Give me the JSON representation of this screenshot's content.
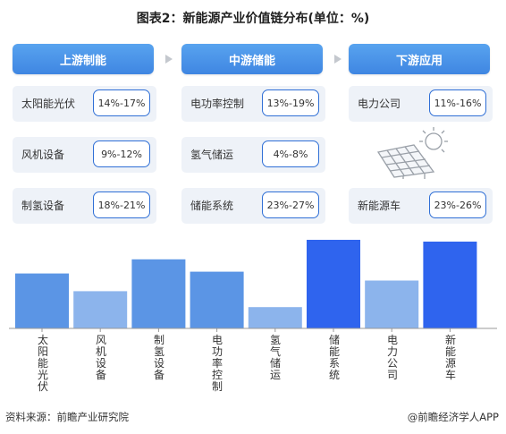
{
  "title": "图表2：新能源产业价值链分布(单位：%)",
  "stages": [
    {
      "header": "上游制能",
      "rows": [
        {
          "label": "太阳能光伏",
          "range": "14%-17%"
        },
        {
          "label": "风机设备",
          "range": "9%-12%"
        },
        {
          "label": "制氢设备",
          "range": "18%-21%"
        }
      ]
    },
    {
      "header": "中游储能",
      "rows": [
        {
          "label": "电功率控制",
          "range": "13%-19%"
        },
        {
          "label": "氢气储运",
          "range": "4%-8%"
        },
        {
          "label": "储能系统",
          "range": "23%-27%"
        }
      ]
    },
    {
      "header": "下游应用",
      "rows": [
        {
          "label": "电力公司",
          "range": "11%-16%"
        },
        {
          "label": "新能源车",
          "range": "23%-26%"
        }
      ]
    }
  ],
  "arrow_icon": "chevron-right-icon",
  "colors": {
    "header": "#4a94e8",
    "pill_border": "#2f6fd6",
    "bar_dark": "#2f64ee",
    "bar_medium": "#5b95e5",
    "bar_light": "#8cb4ec"
  },
  "chart_data": {
    "type": "bar",
    "categories": [
      "太阳能光伏",
      "风机设备",
      "制氢设备",
      "电功率控制",
      "氢气储运",
      "储能系统",
      "电力公司",
      "新能源车"
    ],
    "values": [
      15.5,
      10.5,
      19.5,
      16,
      6,
      25,
      13.5,
      24.5
    ],
    "shades": [
      "medium",
      "light",
      "medium",
      "medium",
      "light",
      "dark",
      "light",
      "dark"
    ],
    "ylim": [
      0,
      25
    ],
    "xlabel": "",
    "ylabel": "",
    "grid": false,
    "legend": "none"
  },
  "footer": {
    "source": "资料来源：前瞻产业研究院",
    "brand": "@前瞻经济学人APP"
  }
}
